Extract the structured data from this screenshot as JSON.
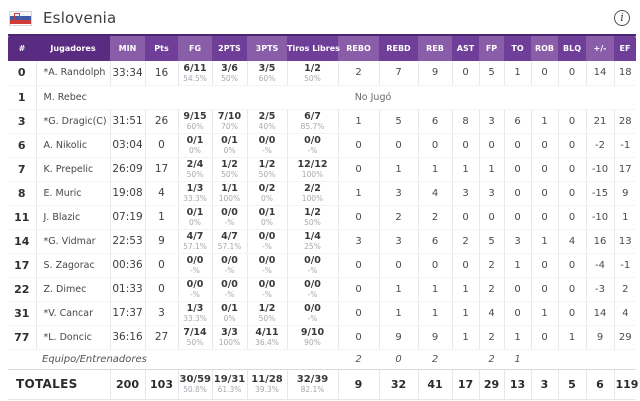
{
  "header": {
    "team_name": "Eslovenia",
    "flag_icon": "slovenia-flag",
    "info_glyph": "i"
  },
  "colors": {
    "header_base": "#5a2c81",
    "header_light": "#8a5da9",
    "header_dark": "#6f3e99",
    "header_top": "#4b2473"
  },
  "table": {
    "dnp_label": "No Jugó",
    "columns": [
      {
        "key": "num",
        "label": "#",
        "shade": "base"
      },
      {
        "key": "name",
        "label": "Jugadores",
        "shade": "base"
      },
      {
        "key": "min",
        "label": "MIN",
        "shade": "light"
      },
      {
        "key": "pts",
        "label": "Pts",
        "shade": "dark"
      },
      {
        "key": "fg",
        "label": "FG",
        "shade": "light"
      },
      {
        "key": "p2",
        "label": "2PTS",
        "shade": "dark"
      },
      {
        "key": "p3",
        "label": "3PTS",
        "shade": "light"
      },
      {
        "key": "tl",
        "label": "Tiros Libres",
        "shade": "dark"
      },
      {
        "key": "rebo",
        "label": "REBO",
        "shade": "light"
      },
      {
        "key": "rebd",
        "label": "REBD",
        "shade": "dark"
      },
      {
        "key": "reb",
        "label": "REB",
        "shade": "light"
      },
      {
        "key": "ast",
        "label": "AST",
        "shade": "dark"
      },
      {
        "key": "fp",
        "label": "FP",
        "shade": "light"
      },
      {
        "key": "to",
        "label": "TO",
        "shade": "dark"
      },
      {
        "key": "rob",
        "label": "ROB",
        "shade": "light"
      },
      {
        "key": "blq",
        "label": "BLQ",
        "shade": "dark"
      },
      {
        "key": "pm",
        "label": "+/-",
        "shade": "light"
      },
      {
        "key": "ef",
        "label": "EF",
        "shade": "dark"
      }
    ],
    "rows": [
      {
        "num": "0",
        "name": "*A. Randolph",
        "min": "33:34",
        "pts": "16",
        "fg": "6/11",
        "fg_pct": "54.5%",
        "p2": "3/6",
        "p2_pct": "50%",
        "p3": "3/5",
        "p3_pct": "60%",
        "tl": "1/2",
        "tl_pct": "50%",
        "rebo": "2",
        "rebd": "7",
        "reb": "9",
        "ast": "0",
        "fp": "5",
        "to": "1",
        "rob": "0",
        "blq": "0",
        "pm": "14",
        "ef": "18"
      },
      {
        "num": "1",
        "name": "M. Rebec",
        "dnp": true
      },
      {
        "num": "3",
        "name": "*G. Dragic(C)",
        "min": "31:51",
        "pts": "26",
        "fg": "9/15",
        "fg_pct": "60%",
        "p2": "7/10",
        "p2_pct": "70%",
        "p3": "2/5",
        "p3_pct": "40%",
        "tl": "6/7",
        "tl_pct": "85.7%",
        "rebo": "1",
        "rebd": "5",
        "reb": "6",
        "ast": "8",
        "fp": "3",
        "to": "6",
        "rob": "1",
        "blq": "0",
        "pm": "21",
        "ef": "28"
      },
      {
        "num": "6",
        "name": "A. Nikolic",
        "min": "03:04",
        "pts": "0",
        "fg": "0/1",
        "fg_pct": "0%",
        "p2": "0/1",
        "p2_pct": "0%",
        "p3": "0/0",
        "p3_pct": "-%",
        "tl": "0/0",
        "tl_pct": "-%",
        "rebo": "0",
        "rebd": "0",
        "reb": "0",
        "ast": "0",
        "fp": "0",
        "to": "0",
        "rob": "0",
        "blq": "0",
        "pm": "-2",
        "ef": "-1"
      },
      {
        "num": "7",
        "name": "K. Prepelic",
        "min": "26:09",
        "pts": "17",
        "fg": "2/4",
        "fg_pct": "50%",
        "p2": "1/2",
        "p2_pct": "50%",
        "p3": "1/2",
        "p3_pct": "50%",
        "tl": "12/12",
        "tl_pct": "100%",
        "rebo": "0",
        "rebd": "1",
        "reb": "1",
        "ast": "1",
        "fp": "1",
        "to": "0",
        "rob": "0",
        "blq": "0",
        "pm": "-10",
        "ef": "17"
      },
      {
        "num": "8",
        "name": "E. Muric",
        "min": "19:08",
        "pts": "4",
        "fg": "1/3",
        "fg_pct": "33.3%",
        "p2": "1/1",
        "p2_pct": "100%",
        "p3": "0/2",
        "p3_pct": "0%",
        "tl": "2/2",
        "tl_pct": "100%",
        "rebo": "1",
        "rebd": "3",
        "reb": "4",
        "ast": "3",
        "fp": "3",
        "to": "0",
        "rob": "0",
        "blq": "0",
        "pm": "-15",
        "ef": "9"
      },
      {
        "num": "11",
        "name": "J. Blazic",
        "min": "07:19",
        "pts": "1",
        "fg": "0/1",
        "fg_pct": "0%",
        "p2": "0/0",
        "p2_pct": "-%",
        "p3": "0/1",
        "p3_pct": "0%",
        "tl": "1/2",
        "tl_pct": "50%",
        "rebo": "0",
        "rebd": "2",
        "reb": "2",
        "ast": "0",
        "fp": "0",
        "to": "0",
        "rob": "0",
        "blq": "0",
        "pm": "-10",
        "ef": "1"
      },
      {
        "num": "14",
        "name": "*G. Vidmar",
        "min": "22:53",
        "pts": "9",
        "fg": "4/7",
        "fg_pct": "57.1%",
        "p2": "4/7",
        "p2_pct": "57.1%",
        "p3": "0/0",
        "p3_pct": "-%",
        "tl": "1/4",
        "tl_pct": "25%",
        "rebo": "3",
        "rebd": "3",
        "reb": "6",
        "ast": "2",
        "fp": "5",
        "to": "3",
        "rob": "1",
        "blq": "4",
        "pm": "16",
        "ef": "13"
      },
      {
        "num": "17",
        "name": "S. Zagorac",
        "min": "00:36",
        "pts": "0",
        "fg": "0/0",
        "fg_pct": "-%",
        "p2": "0/0",
        "p2_pct": "-%",
        "p3": "0/0",
        "p3_pct": "-%",
        "tl": "0/0",
        "tl_pct": "-%",
        "rebo": "0",
        "rebd": "0",
        "reb": "0",
        "ast": "0",
        "fp": "2",
        "to": "1",
        "rob": "0",
        "blq": "0",
        "pm": "-4",
        "ef": "-1"
      },
      {
        "num": "22",
        "name": "Z. Dimec",
        "min": "01:33",
        "pts": "0",
        "fg": "0/0",
        "fg_pct": "-%",
        "p2": "0/0",
        "p2_pct": "-%",
        "p3": "0/0",
        "p3_pct": "-%",
        "tl": "0/0",
        "tl_pct": "-%",
        "rebo": "0",
        "rebd": "1",
        "reb": "1",
        "ast": "1",
        "fp": "2",
        "to": "0",
        "rob": "0",
        "blq": "0",
        "pm": "-3",
        "ef": "2"
      },
      {
        "num": "31",
        "name": "*V. Cancar",
        "min": "17:37",
        "pts": "3",
        "fg": "1/3",
        "fg_pct": "33.3%",
        "p2": "0/1",
        "p2_pct": "0%",
        "p3": "1/2",
        "p3_pct": "50%",
        "tl": "0/0",
        "tl_pct": "-%",
        "rebo": "0",
        "rebd": "1",
        "reb": "1",
        "ast": "1",
        "fp": "4",
        "to": "0",
        "rob": "1",
        "blq": "0",
        "pm": "14",
        "ef": "4"
      },
      {
        "num": "77",
        "name": "*L. Doncic",
        "min": "36:16",
        "pts": "27",
        "fg": "7/14",
        "fg_pct": "50%",
        "p2": "3/3",
        "p2_pct": "100%",
        "p3": "4/11",
        "p3_pct": "36.4%",
        "tl": "9/10",
        "tl_pct": "90%",
        "rebo": "0",
        "rebd": "9",
        "reb": "9",
        "ast": "1",
        "fp": "2",
        "to": "1",
        "rob": "0",
        "blq": "1",
        "pm": "9",
        "ef": "29"
      }
    ],
    "team_row": {
      "label": "Equipo/Entrenadores",
      "rebo": "2",
      "rebd": "0",
      "reb": "2",
      "ast": "",
      "fp": "2",
      "to": "1",
      "rob": "",
      "blq": "",
      "pm": "",
      "ef": ""
    },
    "totals_row": {
      "label": "TOTALES",
      "min": "200",
      "pts": "103",
      "fg": "30/59",
      "fg_pct": "50.8%",
      "p2": "19/31",
      "p2_pct": "61.3%",
      "p3": "11/28",
      "p3_pct": "39.3%",
      "tl": "32/39",
      "tl_pct": "82.1%",
      "rebo": "9",
      "rebd": "32",
      "reb": "41",
      "ast": "17",
      "fp": "29",
      "to": "13",
      "rob": "3",
      "blq": "5",
      "pm": "6",
      "ef": "119"
    }
  }
}
